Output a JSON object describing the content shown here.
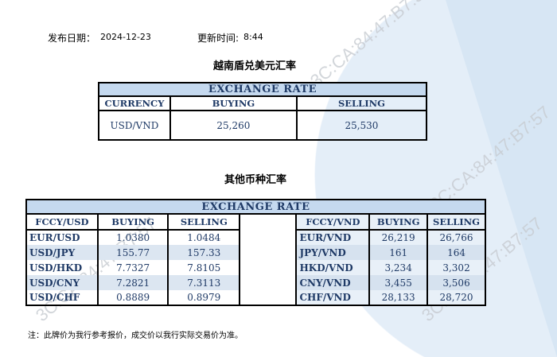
{
  "meta": {
    "publish_date_label": "发布日期：",
    "publish_date": "2024-12-23",
    "update_time_label": "更新时间:",
    "update_time": "8:44"
  },
  "watermark": "3C:CA:84:47:B7:57",
  "vnd_usd": {
    "title": "越南盾兑美元汇率",
    "header": "EXCHANGE RATE",
    "columns": [
      "CURRENCY",
      "BUYING",
      "SELLING"
    ],
    "row": {
      "currency": "USD/VND",
      "buying": "25,260",
      "selling": "25,530"
    }
  },
  "others": {
    "title": "其他币种汇率",
    "header": "EXCHANGE  RATE",
    "left_columns": [
      "FCCY/USD",
      "BUYING",
      "SELLING"
    ],
    "right_columns": [
      "FCCY/VND",
      "BUYING",
      "SELLING"
    ],
    "rows": [
      {
        "l_pair": "EUR/USD",
        "l_buy": "1.0380",
        "l_sell": "1.0484",
        "r_pair": "EUR/VND",
        "r_buy": "26,219",
        "r_sell": "26,766"
      },
      {
        "l_pair": "USD/JPY",
        "l_buy": "155.77",
        "l_sell": "157.33",
        "r_pair": "JPY/VND",
        "r_buy": "161",
        "r_sell": "164"
      },
      {
        "l_pair": "USD/HKD",
        "l_buy": "7.7327",
        "l_sell": "7.8105",
        "r_pair": "HKD/VND",
        "r_buy": "3,234",
        "r_sell": "3,302"
      },
      {
        "l_pair": "USD/CNY",
        "l_buy": "7.2821",
        "l_sell": "7.3113",
        "r_pair": "CNY/VND",
        "r_buy": "3,455",
        "r_sell": "3,506"
      },
      {
        "l_pair": "USD/CHF",
        "l_buy": "0.8889",
        "l_sell": "0.8979",
        "r_pair": "CHF/VND",
        "r_buy": "28,133",
        "r_sell": "28,720"
      }
    ]
  },
  "note": "注：此牌价为我行参考报价，成交价以我行实际交易价为准。"
}
